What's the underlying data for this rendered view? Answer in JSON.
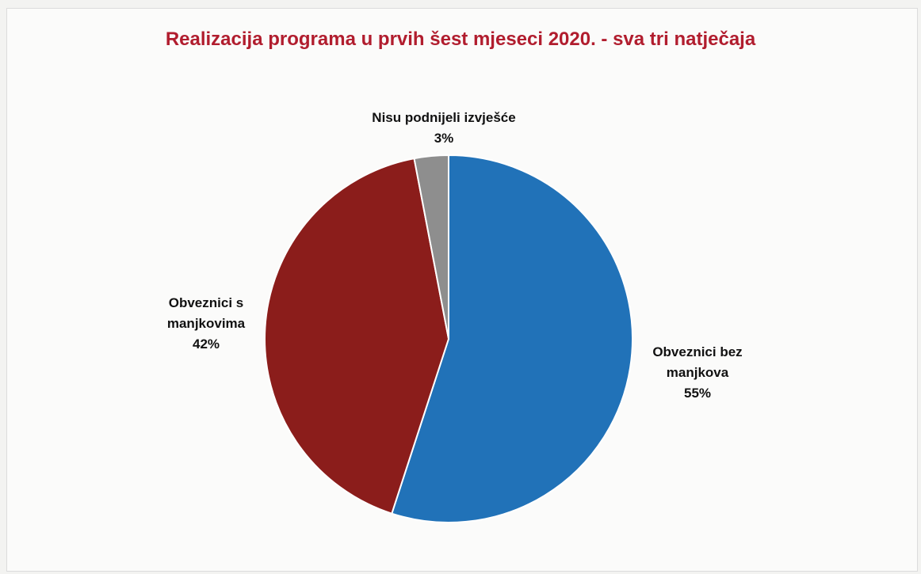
{
  "chart_data": {
    "type": "pie",
    "title": "Realizacija programa u prvih šest mjeseci 2020. - sva tri natječaja",
    "slices": [
      {
        "label_lines": [
          "Obveznici bez",
          "manjkova"
        ],
        "value": 55,
        "value_text": "55%",
        "color": "#2172b8"
      },
      {
        "label_lines": [
          "Obveznici s",
          "manjkovima"
        ],
        "value": 42,
        "value_text": "42%",
        "color": "#8b1d1b"
      },
      {
        "label_lines": [
          "Nisu podnijeli izvješće"
        ],
        "value": 3,
        "value_text": "3%",
        "color": "#8e8e8e"
      }
    ]
  }
}
